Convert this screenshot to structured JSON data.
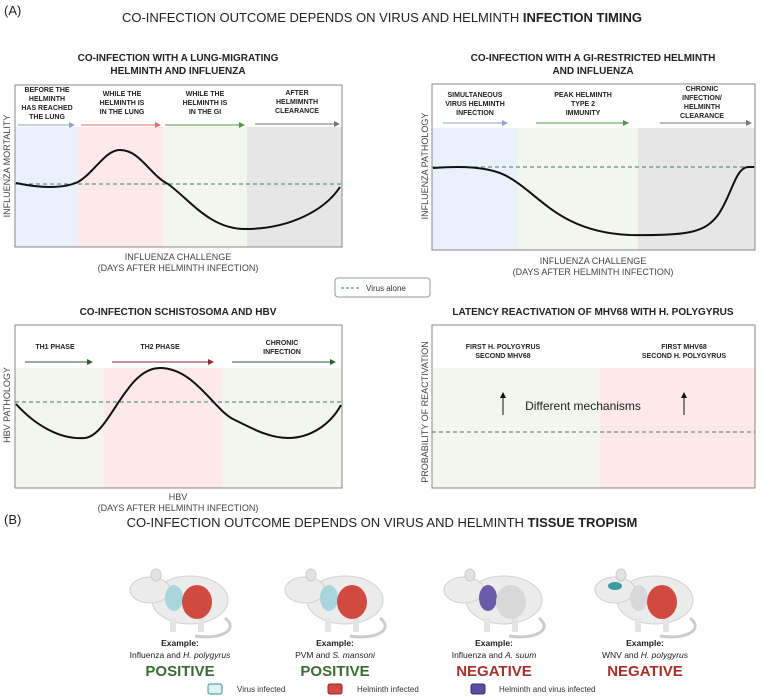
{
  "panel_a": {
    "label": "(A)",
    "title_plain": "CO-INFECTION OUTCOME DEPENDS ON VIRUS AND HELMINTH ",
    "title_bold": "INFECTION TIMING",
    "lung_panel": {
      "title_line1": "CO-INFECTION WITH A LUNG-MIGRATING",
      "title_line2": "HELMINTH AND INFLUENZA",
      "phases": [
        [
          "BEFORE THE",
          "HELMINTH",
          "HAS REACHED",
          "THE LUNG"
        ],
        [
          "WHILE THE",
          "HELMINTH IS",
          "IN THE LUNG"
        ],
        [
          "WHILE THE",
          "HELMINTH IS",
          "IN THE GI"
        ],
        [
          "AFTER",
          "HELMIMNTH",
          "CLEARANCE"
        ]
      ],
      "ylabel": "INFLUENZA MORTALITY",
      "xlabel_line1": "INFLUENZA CHALLENGE",
      "xlabel_line2": "(DAYS AFTER HELMINTH INFECTION)"
    },
    "gi_panel": {
      "title_line1": "CO-INFECTION WITH A GI-RESTRICTED HELMINTH",
      "title_line2": "AND INFLUENZA",
      "phases": [
        [
          "SIMULTANEOUS",
          "VIRUS HELMINTH",
          "INFECTION"
        ],
        [
          "PEAK HELMINTH",
          "TYPE 2",
          "IMMUNITY"
        ],
        [
          "CHRONIC",
          "INFECTION/",
          "HELMINTH",
          "CLEARANCE"
        ]
      ],
      "ylabel": "INFLUENZA PATHOLOGY",
      "xlabel_line1": "INFLUENZA CHALLENGE",
      "xlabel_line2": "(DAYS AFTER HELMINTH INFECTION)"
    },
    "legend": {
      "virus_alone": "Virus alone"
    },
    "hbv_panel": {
      "title": "CO-INFECTION SCHISTOSOMA AND HBV",
      "phases": [
        [
          "TH1 PHASE"
        ],
        [
          "TH2 PHASE"
        ],
        [
          "CHRONIC",
          "INFECTION"
        ]
      ],
      "ylabel": "HBV PATHOLOGY",
      "xlabel_line1": "HBV",
      "xlabel_line2": "(DAYS AFTER HELMINTH INFECTION)"
    },
    "mhv_panel": {
      "title": "LATENCY REACTIVATION OF MHV68 WITH H. POLYGYRUS",
      "phases": [
        [
          "FIRST H. POLYGYRUS",
          "SECOND MHV68"
        ],
        [
          "FIRST MHV68",
          "SECOND H. POLYGYRUS"
        ]
      ],
      "annotation": "Different mechanisms",
      "ylabel": "PROBABILITY OF REACTIVATION"
    }
  },
  "panel_b": {
    "label": "(B)",
    "title_plain": "CO-INFECTION OUTCOME DEPENDS ON VIRUS AND HELMINTH ",
    "title_bold": "TISSUE TROPISM",
    "examples": [
      {
        "heading": "Example:",
        "virus": "Influenza and ",
        "helminth": "H. polygyrus",
        "outcome": "POSITIVE"
      },
      {
        "heading": "Example:",
        "virus": "PVM and ",
        "helminth": "S. mansoni",
        "outcome": "POSITIVE"
      },
      {
        "heading": "Example:",
        "virus": "Influenza and ",
        "helminth": "A. suum",
        "outcome": "NEGATIVE"
      },
      {
        "heading": "Example:",
        "virus": "WNV and ",
        "helminth": "H. polygyrus",
        "outcome": "NEGATIVE"
      }
    ],
    "legend": [
      "Virus infected",
      "Helminth infected",
      "Helminth and virus  infected"
    ]
  },
  "colors": {
    "positive": "#3a6b35",
    "negative": "#a8302b",
    "blue_phase": "#eaf1fb",
    "pink_phase": "#fde9e9",
    "green_phase": "#f2f6ec",
    "grey_phase": "#e6e6e6",
    "virus": "#a7d7dc",
    "helminth": "#d04a42",
    "both": "#6a5aa8",
    "dashed": "#3c7a6a"
  }
}
